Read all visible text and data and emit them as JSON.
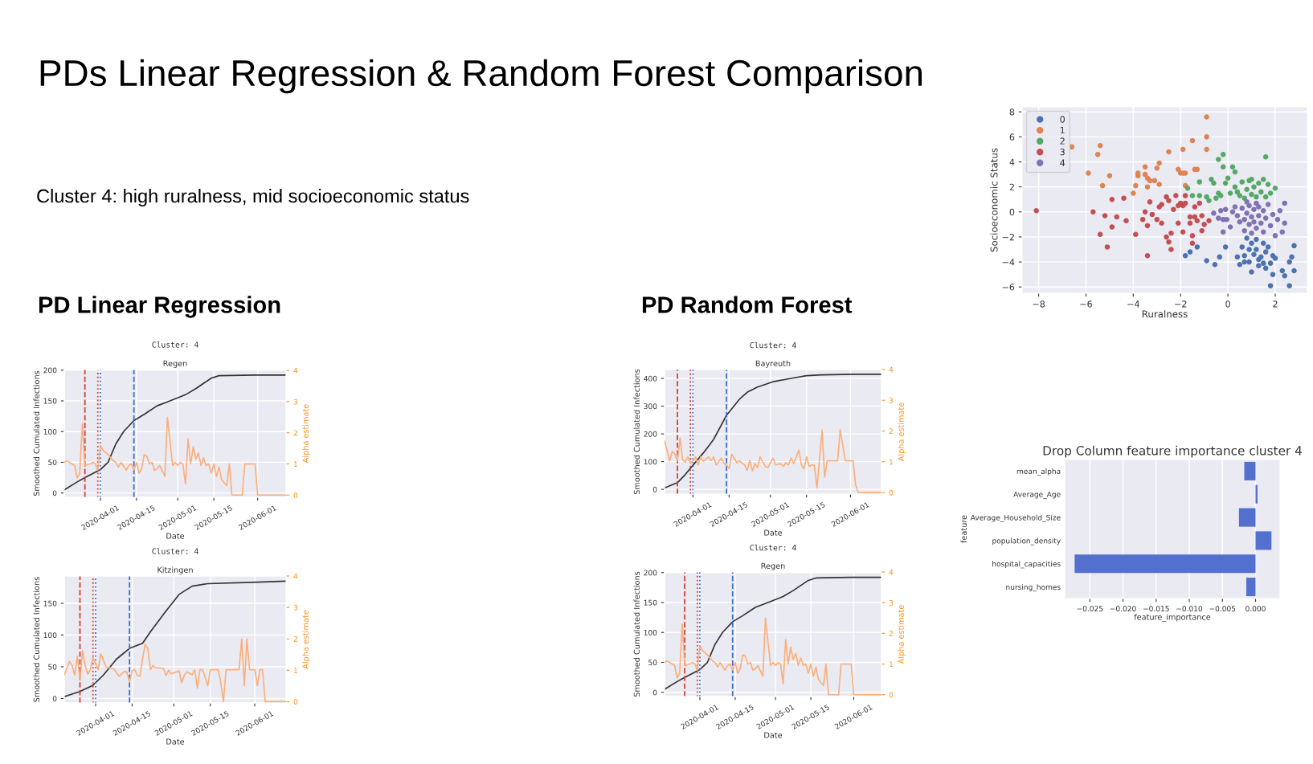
{
  "chart_data": [
    {
      "type": "other",
      "title": "PDs Linear Regression & Random Forest Comparison",
      "subtitle": "Cluster 4: high ruralness, mid socioeconomic status",
      "annotations": [
        "PD Linear Regression",
        "PD Random Forest"
      ]
    },
    {
      "type": "scatter",
      "xlabel": "Ruralness",
      "ylabel": "Socioeconomic Status",
      "xlim": [
        -8.7,
        3.36
      ],
      "ylim": [
        -6.5,
        8.4
      ],
      "xticks": [
        {
          "value": -8,
          "label": "−8"
        },
        {
          "value": -6,
          "label": "−6"
        },
        {
          "value": -4,
          "label": "−4"
        },
        {
          "value": -2,
          "label": "−2"
        },
        0,
        2
      ],
      "yticks": [
        {
          "value": -6,
          "label": "−6"
        },
        {
          "value": -4,
          "label": "−4"
        },
        {
          "value": -2,
          "label": "−2"
        },
        0,
        2,
        4,
        6,
        8
      ],
      "grid": true,
      "legend": "top left",
      "marker": "circle",
      "series": [
        {
          "name": "0",
          "color": "#4c72b0",
          "x": [
            -1.8,
            -1.6,
            -1.3,
            -0.9,
            -0.55,
            -0.35,
            -0.1,
            0.4,
            0.5,
            0.6,
            0.7,
            0.8,
            0.9,
            0.9,
            1.0,
            1.0,
            1.1,
            1.2,
            1.2,
            1.3,
            1.4,
            1.5,
            1.5,
            1.6,
            1.6,
            1.7,
            1.8,
            1.8,
            1.9,
            1.9,
            2.0,
            2.3,
            2.4,
            2.6,
            2.6,
            2.7,
            2.8,
            2.8,
            0.7,
            1.3
          ],
          "values": [
            -3.5,
            -3.2,
            -2.8,
            -3.9,
            -4.2,
            -3.6,
            -2.8,
            -3.6,
            -4.2,
            -2.8,
            -3.5,
            -2.1,
            -3.0,
            -4.0,
            -2.5,
            -4.8,
            -3.4,
            -2.2,
            -3.0,
            -4.3,
            -3.6,
            -2.5,
            -4.1,
            -3.2,
            -4.5,
            -2.8,
            -4.1,
            -5.9,
            -3.5,
            -5.0,
            -3.7,
            -4.7,
            -5.1,
            -4.0,
            -5.9,
            -3.6,
            -2.7,
            -4.7,
            -4.0,
            -3.8
          ]
        },
        {
          "name": "1",
          "color": "#dd8452",
          "x": [
            -6.6,
            -5.9,
            -5.5,
            -5.4,
            -5.3,
            -5.0,
            -4.0,
            -3.9,
            -3.8,
            -3.8,
            -3.5,
            -3.5,
            -3.4,
            -3.4,
            -3.3,
            -3.1,
            -3.0,
            -2.9,
            -2.9,
            -2.5,
            -2.1,
            -2.0,
            -1.9,
            -1.9,
            -1.8,
            -1.8,
            -1.5,
            -1.4,
            -1.3,
            -0.9,
            -0.9,
            -0.9
          ],
          "values": [
            5.2,
            3.1,
            4.6,
            5.3,
            2.1,
            2.9,
            1.5,
            2.1,
            3.1,
            2.9,
            3.6,
            3.0,
            2.7,
            2.0,
            2.5,
            2.5,
            3.5,
            2.2,
            3.9,
            4.8,
            3.4,
            3.1,
            5.0,
            3.1,
            3.1,
            2.1,
            5.7,
            3.4,
            3.4,
            7.6,
            6.0,
            5.0
          ]
        },
        {
          "name": "2",
          "color": "#55a868",
          "x": [
            -1.7,
            -1.5,
            -1.2,
            -1.2,
            -0.8,
            -0.7,
            -0.4,
            -0.2,
            -0.2,
            -0.4,
            -0.5,
            -0.3,
            -0.1,
            0.0,
            0.2,
            0.3,
            0.3,
            0.5,
            0.6,
            0.7,
            0.8,
            0.9,
            1.0,
            1.1,
            1.2,
            1.3,
            1.4,
            1.5,
            1.6,
            1.6,
            1.7,
            1.8,
            2.0,
            0.4,
            1.0,
            -0.9,
            -0.6,
            0.1
          ],
          "values": [
            1.9,
            1.3,
            2.4,
            1.3,
            0.9,
            2.6,
            4.2,
            4.6,
            3.6,
            1.5,
            1.1,
            1.3,
            2.3,
            2.7,
            3.6,
            3.2,
            2.0,
            1.3,
            2.4,
            1.1,
            1.8,
            2.5,
            1.4,
            2.0,
            1.2,
            2.3,
            1.6,
            2.6,
            1.2,
            4.4,
            2.2,
            1.5,
            1.9,
            1.6,
            2.6,
            1.2,
            2.3,
            1.5
          ]
        },
        {
          "name": "3",
          "color": "#c44e52",
          "x": [
            -8.1,
            -5.7,
            -5.4,
            -5.2,
            -5.1,
            -4.9,
            -4.9,
            -4.7,
            -4.4,
            -4.3,
            -3.9,
            -3.6,
            -3.5,
            -3.4,
            -3.4,
            -3.3,
            -3.2,
            -3.0,
            -2.9,
            -2.8,
            -2.8,
            -2.6,
            -2.6,
            -2.5,
            -2.5,
            -2.4,
            -2.4,
            -2.3,
            -2.2,
            -2.1,
            -2.1,
            -2.0,
            -1.9,
            -1.9,
            -1.8,
            -1.8,
            -1.6,
            -1.5,
            -1.5,
            -1.4,
            -1.4,
            -1.3,
            -1.2,
            -1.1,
            -1.1,
            -1.0,
            -0.8,
            -1.6
          ],
          "values": [
            0.1,
            0.0,
            -1.8,
            -0.3,
            -2.8,
            1.0,
            -1.2,
            -0.4,
            1.1,
            -0.7,
            -1.8,
            -0.6,
            0.0,
            -1.1,
            -3.5,
            0.8,
            -0.2,
            -0.6,
            0.4,
            -0.9,
            0.6,
            1.2,
            -2.0,
            -2.4,
            0.9,
            -1.7,
            -3.0,
            0.2,
            1.3,
            -0.9,
            0.5,
            0.7,
            0.5,
            -1.6,
            1.3,
            0.7,
            -0.9,
            -1.9,
            -2.5,
            -0.4,
            0.4,
            -0.7,
            0.7,
            -1.5,
            -0.3,
            -1.0,
            -0.7,
            -0.4
          ]
        },
        {
          "name": "4",
          "color": "#8172b3",
          "x": [
            -0.6,
            -0.4,
            -0.3,
            -0.2,
            -0.1,
            -0.2,
            -0.05,
            0.1,
            0.2,
            0.3,
            0.4,
            0.5,
            0.6,
            0.7,
            0.7,
            0.8,
            0.9,
            0.9,
            1.0,
            1.1,
            1.1,
            1.2,
            1.3,
            1.3,
            1.4,
            1.5,
            1.5,
            1.6,
            1.7,
            1.8,
            1.9,
            2.0,
            2.1,
            2.2,
            2.3,
            2.4,
            2.4,
            1.0,
            0.8,
            1.2
          ],
          "values": [
            -0.1,
            -0.5,
            0.1,
            -0.6,
            0.2,
            -1.6,
            -0.6,
            -1.2,
            0.0,
            0.4,
            -0.3,
            -0.8,
            0.3,
            -0.6,
            -1.5,
            -0.1,
            0.5,
            -1.0,
            -0.4,
            0.2,
            -0.8,
            -1.3,
            0.4,
            -0.3,
            -0.9,
            0.1,
            -1.6,
            -0.5,
            0.6,
            -1.1,
            -0.2,
            -1.9,
            -0.6,
            0.1,
            -1.6,
            0.7,
            -0.9,
            -1.7,
            0.8,
            0.7
          ]
        }
      ]
    },
    {
      "type": "line",
      "title": "Cluster: 4",
      "subtitle": "Regen",
      "xlabel": "Date",
      "ylabel": "Smoothed Cumulated Infections",
      "y2label": "Alpha estimate",
      "xlim": [
        "2020-03-18",
        "2020-06-12"
      ],
      "xticks": [
        "2020-04-01",
        "2020-04-15",
        "2020-05-01",
        "2020-05-15",
        "2020-06-01"
      ],
      "ylim": [
        -7,
        201
      ],
      "yticks": [
        0,
        50,
        100,
        150,
        200
      ],
      "y2lim": [
        -0.07,
        4.03
      ],
      "y2ticks": [
        0,
        1,
        2,
        3,
        4
      ],
      "grid": true,
      "ref_lines": [
        {
          "axis": "x",
          "value": "2020-03-26",
          "color": "#d9413a",
          "line_style": "dashed"
        },
        {
          "axis": "x",
          "value": "2020-03-31",
          "color": "#d9413a",
          "line_style": "dotted"
        },
        {
          "axis": "x",
          "value": "2020-04-01",
          "color": "#3d6fd1",
          "line_style": "dotted"
        },
        {
          "axis": "x",
          "value": "2020-04-14",
          "color": "#3d6fd1",
          "line_style": "dashed"
        }
      ],
      "series": [
        {
          "color": "#333333",
          "x": [
            "2020-03-18",
            "2020-03-23",
            "2020-03-26",
            "2020-04-01",
            "2020-04-04",
            "2020-04-07",
            "2020-04-10",
            "2020-04-14",
            "2020-04-18",
            "2020-04-23",
            "2020-04-28",
            "2020-05-04",
            "2020-05-08",
            "2020-05-14",
            "2020-05-17",
            "2020-05-31",
            "2020-06-12"
          ],
          "values": [
            5,
            18,
            25,
            38,
            50,
            80,
            100,
            118,
            128,
            142,
            150,
            160,
            170,
            187,
            191,
            192,
            192
          ]
        },
        {
          "color": "#fcaf7c",
          "axis": "y2",
          "x": [
            "2020-03-18",
            "2020-03-19",
            "2020-03-21",
            "2020-03-22",
            "2020-03-23",
            "2020-03-24",
            "2020-03-25",
            "2020-03-26",
            "2020-03-28",
            "2020-03-29",
            "2020-03-30",
            "2020-03-31",
            "2020-04-01",
            "2020-04-02",
            "2020-04-04",
            "2020-04-06",
            "2020-04-07",
            "2020-04-08",
            "2020-04-09",
            "2020-04-11",
            "2020-04-12",
            "2020-04-13",
            "2020-04-14",
            "2020-04-15",
            "2020-04-16",
            "2020-04-17",
            "2020-04-18",
            "2020-04-19",
            "2020-04-20",
            "2020-04-21",
            "2020-04-22",
            "2020-04-23",
            "2020-04-24",
            "2020-04-26",
            "2020-04-27",
            "2020-04-29",
            "2020-04-30",
            "2020-05-01",
            "2020-05-02",
            "2020-05-03",
            "2020-05-04",
            "2020-05-05",
            "2020-05-06",
            "2020-05-07",
            "2020-05-08",
            "2020-05-09",
            "2020-05-10",
            "2020-05-11",
            "2020-05-12",
            "2020-05-13",
            "2020-05-14",
            "2020-05-15",
            "2020-05-16",
            "2020-05-17",
            "2020-05-18",
            "2020-05-19",
            "2020-05-20",
            "2020-05-21",
            "2020-05-22",
            "2020-05-26",
            "2020-05-27",
            "2020-05-31",
            "2020-06-01",
            "2020-06-12"
          ],
          "values": [
            1.05,
            1.1,
            1.0,
            0.95,
            0.55,
            0.7,
            2.3,
            0.95,
            1.0,
            1.05,
            1.0,
            0.8,
            1.6,
            1.45,
            1.3,
            1.1,
            1.05,
            0.9,
            1.05,
            0.8,
            0.95,
            1.0,
            0.8,
            1.05,
            0.7,
            0.85,
            1.3,
            1.25,
            1.0,
            1.05,
            0.8,
            0.85,
            0.95,
            0.6,
            2.5,
            0.95,
            1.05,
            0.95,
            1.05,
            1.0,
            0.35,
            1.8,
            1.0,
            1.55,
            1.15,
            1.35,
            0.95,
            1.2,
            0.95,
            1.0,
            0.7,
            1.0,
            0.6,
            0.9,
            0.5,
            0.4,
            0.3,
            1.0,
            0.0,
            0.0,
            1.0,
            1.0,
            0.0,
            0.0
          ]
        }
      ]
    },
    {
      "type": "line",
      "title": "Cluster: 4",
      "subtitle": "Kitzingen",
      "xlabel": "Date",
      "ylabel": "Smoothed Cumulated Infections",
      "y2label": "Alpha estimate",
      "xlim": [
        "2020-03-20",
        "2020-06-13"
      ],
      "xticks": [
        "2020-04-01",
        "2020-04-15",
        "2020-05-01",
        "2020-05-15",
        "2020-06-01"
      ],
      "ylim": [
        -7,
        193
      ],
      "yticks": [
        0,
        50,
        100,
        150
      ],
      "y2lim": [
        -0.04,
        4.0
      ],
      "y2ticks": [
        0,
        1,
        2,
        3,
        4
      ],
      "grid": true,
      "ref_lines": [
        {
          "axis": "x",
          "value": "2020-03-26",
          "color": "#d9413a",
          "line_style": "dashed"
        },
        {
          "axis": "x",
          "value": "2020-03-31",
          "color": "#d9413a",
          "line_style": "dotted"
        },
        {
          "axis": "x",
          "value": "2020-04-01",
          "color": "#3d6fd1",
          "line_style": "dotted"
        },
        {
          "axis": "x",
          "value": "2020-04-14",
          "color": "#3d6fd1",
          "line_style": "dashed"
        }
      ],
      "series": [
        {
          "color": "#333333",
          "x": [
            "2020-03-20",
            "2020-03-26",
            "2020-03-31",
            "2020-04-04",
            "2020-04-09",
            "2020-04-14",
            "2020-04-19",
            "2020-04-22",
            "2020-04-28",
            "2020-05-03",
            "2020-05-08",
            "2020-05-14",
            "2020-05-31",
            "2020-06-13"
          ],
          "values": [
            3,
            11,
            21,
            37,
            62,
            79,
            87,
            105,
            138,
            164,
            177,
            181,
            183,
            185
          ]
        },
        {
          "color": "#fcaf7c",
          "axis": "y2",
          "x": [
            "2020-03-20",
            "2020-03-22",
            "2020-03-23",
            "2020-03-24",
            "2020-03-25",
            "2020-03-26",
            "2020-03-27",
            "2020-03-28",
            "2020-03-29",
            "2020-03-30",
            "2020-03-31",
            "2020-04-01",
            "2020-04-02",
            "2020-04-03",
            "2020-04-05",
            "2020-04-06",
            "2020-04-08",
            "2020-04-10",
            "2020-04-12",
            "2020-04-13",
            "2020-04-14",
            "2020-04-15",
            "2020-04-16",
            "2020-04-17",
            "2020-04-18",
            "2020-04-19",
            "2020-04-20",
            "2020-04-21",
            "2020-04-22",
            "2020-04-23",
            "2020-04-24",
            "2020-04-27",
            "2020-04-28",
            "2020-04-29",
            "2020-04-30",
            "2020-05-03",
            "2020-05-04",
            "2020-05-05",
            "2020-05-06",
            "2020-05-08",
            "2020-05-09",
            "2020-05-10",
            "2020-05-11",
            "2020-05-12",
            "2020-05-14",
            "2020-05-15",
            "2020-05-18",
            "2020-05-19",
            "2020-05-20",
            "2020-05-21",
            "2020-05-26",
            "2020-05-27",
            "2020-05-28",
            "2020-05-29",
            "2020-05-30",
            "2020-06-01",
            "2020-06-02",
            "2020-06-03",
            "2020-06-04",
            "2020-06-05",
            "2020-06-13"
          ],
          "values": [
            0.85,
            1.28,
            1.15,
            0.85,
            1.45,
            0.68,
            1.62,
            1.15,
            0.88,
            1.02,
            1.4,
            1.23,
            1.02,
            1.53,
            1.1,
            1.09,
            1.04,
            0.81,
            0.96,
            0.94,
            0.64,
            0.98,
            1.02,
            0.83,
            0.81,
            1.36,
            1.83,
            1.7,
            1.02,
            1.15,
            1.08,
            1.06,
            0.83,
            1.0,
            0.89,
            0.98,
            0.6,
            0.85,
            0.95,
            0.85,
            1.02,
            0.43,
            1.02,
            1.02,
            0.51,
            1.02,
            1.02,
            0.6,
            0.0,
            1.02,
            1.02,
            2.0,
            0.51,
            2.0,
            1.02,
            1.02,
            0.51,
            1.02,
            1.02,
            0.0,
            0.0
          ]
        }
      ]
    },
    {
      "type": "line",
      "title": "Cluster: 4",
      "subtitle": "Bayreuth",
      "xlabel": "Date",
      "ylabel": "Smoothed Cumulated Infections",
      "y2label": "Alpha estimate",
      "xlim": [
        "2020-03-21",
        "2020-06-13"
      ],
      "xticks": [
        "2020-04-01",
        "2020-04-15",
        "2020-05-01",
        "2020-05-15",
        "2020-06-01"
      ],
      "ylim": [
        -17,
        432
      ],
      "yticks": [
        0,
        100,
        200,
        300,
        400
      ],
      "y2lim": [
        -0.05,
        4.0
      ],
      "y2ticks": [
        0,
        1,
        2,
        3,
        4
      ],
      "grid": true,
      "ref_lines": [
        {
          "axis": "x",
          "value": "2020-03-26",
          "color": "#d9413a",
          "line_style": "dashed"
        },
        {
          "axis": "x",
          "value": "2020-03-31",
          "color": "#d9413a",
          "line_style": "dotted"
        },
        {
          "axis": "x",
          "value": "2020-04-01",
          "color": "#3d6fd1",
          "line_style": "dotted"
        },
        {
          "axis": "x",
          "value": "2020-04-14",
          "color": "#3d6fd1",
          "line_style": "dashed"
        }
      ],
      "series": [
        {
          "color": "#333333",
          "x": [
            "2020-03-21",
            "2020-03-26",
            "2020-03-29",
            "2020-04-01",
            "2020-04-05",
            "2020-04-09",
            "2020-04-14",
            "2020-04-19",
            "2020-04-22",
            "2020-04-26",
            "2020-05-02",
            "2020-05-09",
            "2020-05-15",
            "2020-05-21",
            "2020-06-02",
            "2020-06-13"
          ],
          "values": [
            5,
            24,
            53,
            87,
            131,
            180,
            267,
            325,
            350,
            369,
            388,
            400,
            410,
            413,
            415,
            415
          ]
        },
        {
          "color": "#fcaf7c",
          "axis": "y2",
          "x": [
            "2020-03-21",
            "2020-03-23",
            "2020-03-24",
            "2020-03-25",
            "2020-03-26",
            "2020-03-27",
            "2020-03-28",
            "2020-03-29",
            "2020-03-30",
            "2020-03-31",
            "2020-04-01",
            "2020-04-02",
            "2020-04-03",
            "2020-04-04",
            "2020-04-05",
            "2020-04-07",
            "2020-04-08",
            "2020-04-09",
            "2020-04-10",
            "2020-04-12",
            "2020-04-13",
            "2020-04-14",
            "2020-04-15",
            "2020-04-16",
            "2020-04-18",
            "2020-04-19",
            "2020-04-21",
            "2020-04-22",
            "2020-04-23",
            "2020-04-24",
            "2020-04-25",
            "2020-04-26",
            "2020-04-27",
            "2020-04-29",
            "2020-04-30",
            "2020-05-02",
            "2020-05-03",
            "2020-05-05",
            "2020-05-06",
            "2020-05-07",
            "2020-05-08",
            "2020-05-09",
            "2020-05-10",
            "2020-05-12",
            "2020-05-13",
            "2020-05-14",
            "2020-05-15",
            "2020-05-16",
            "2020-05-17",
            "2020-05-18",
            "2020-05-19",
            "2020-05-20",
            "2020-05-21",
            "2020-05-22",
            "2020-05-23",
            "2020-05-27",
            "2020-05-28",
            "2020-05-30",
            "2020-06-02",
            "2020-06-03",
            "2020-06-04",
            "2020-06-13"
          ],
          "values": [
            1.69,
            1.03,
            1.34,
            1.25,
            1.03,
            1.78,
            1.07,
            0.98,
            1.16,
            0.97,
            1.03,
            1.16,
            0.9,
            1.16,
            1.01,
            1.16,
            1.03,
            1.16,
            0.9,
            1.12,
            0.94,
            0.9,
            0.77,
            1.25,
            0.97,
            1.03,
            0.9,
            0.72,
            1.05,
            0.7,
            0.94,
            0.81,
            1.16,
            0.85,
            0.81,
            1.12,
            0.9,
            0.94,
            0.85,
            0.97,
            0.9,
            1.12,
            0.94,
            1.38,
            0.9,
            0.77,
            1.16,
            0.85,
            0.9,
            0.88,
            0.15,
            1.07,
            2.04,
            0.5,
            1.03,
            1.03,
            2.04,
            1.03,
            1.03,
            0.24,
            0.0,
            0.0
          ]
        }
      ]
    },
    {
      "type": "line",
      "title": "Cluster: 4",
      "subtitle": "Regen",
      "xlabel": "Date",
      "ylabel": "Smoothed Cumulated Infections",
      "y2label": "Alpha estimate",
      "xlim": [
        "2020-03-18",
        "2020-06-12"
      ],
      "xticks": [
        "2020-04-01",
        "2020-04-15",
        "2020-05-01",
        "2020-05-15",
        "2020-06-01"
      ],
      "ylim": [
        -7,
        201
      ],
      "yticks": [
        0,
        50,
        100,
        150,
        200
      ],
      "y2lim": [
        -0.06,
        4.0
      ],
      "y2ticks": [
        0,
        1,
        2,
        3,
        4
      ],
      "grid": true,
      "ref_lines": [
        {
          "axis": "x",
          "value": "2020-03-26",
          "color": "#d9413a",
          "line_style": "dashed"
        },
        {
          "axis": "x",
          "value": "2020-03-31",
          "color": "#d9413a",
          "line_style": "dotted"
        },
        {
          "axis": "x",
          "value": "2020-04-01",
          "color": "#3d6fd1",
          "line_style": "dotted"
        },
        {
          "axis": "x",
          "value": "2020-04-14",
          "color": "#3d6fd1",
          "line_style": "dashed"
        }
      ],
      "series": [
        {
          "color": "#333333",
          "x": [
            "2020-03-18",
            "2020-03-23",
            "2020-03-26",
            "2020-04-01",
            "2020-04-04",
            "2020-04-07",
            "2020-04-10",
            "2020-04-14",
            "2020-04-18",
            "2020-04-23",
            "2020-04-28",
            "2020-05-04",
            "2020-05-08",
            "2020-05-14",
            "2020-05-17",
            "2020-05-31",
            "2020-06-12"
          ],
          "values": [
            5,
            18,
            25,
            38,
            50,
            80,
            100,
            118,
            128,
            142,
            150,
            160,
            170,
            187,
            191,
            192,
            192
          ]
        },
        {
          "color": "#fcaf7c",
          "axis": "y2",
          "x": [
            "2020-03-18",
            "2020-03-19",
            "2020-03-21",
            "2020-03-22",
            "2020-03-23",
            "2020-03-24",
            "2020-03-25",
            "2020-03-26",
            "2020-03-28",
            "2020-03-29",
            "2020-03-30",
            "2020-03-31",
            "2020-04-01",
            "2020-04-02",
            "2020-04-04",
            "2020-04-06",
            "2020-04-07",
            "2020-04-08",
            "2020-04-09",
            "2020-04-11",
            "2020-04-12",
            "2020-04-13",
            "2020-04-14",
            "2020-04-15",
            "2020-04-16",
            "2020-04-17",
            "2020-04-18",
            "2020-04-19",
            "2020-04-20",
            "2020-04-21",
            "2020-04-22",
            "2020-04-23",
            "2020-04-24",
            "2020-04-26",
            "2020-04-27",
            "2020-04-29",
            "2020-04-30",
            "2020-05-01",
            "2020-05-02",
            "2020-05-03",
            "2020-05-04",
            "2020-05-05",
            "2020-05-06",
            "2020-05-07",
            "2020-05-08",
            "2020-05-09",
            "2020-05-10",
            "2020-05-11",
            "2020-05-12",
            "2020-05-13",
            "2020-05-14",
            "2020-05-15",
            "2020-05-16",
            "2020-05-17",
            "2020-05-18",
            "2020-05-19",
            "2020-05-20",
            "2020-05-21",
            "2020-05-22",
            "2020-05-26",
            "2020-05-27",
            "2020-05-31",
            "2020-06-01",
            "2020-06-12"
          ],
          "values": [
            1.05,
            1.1,
            1.0,
            0.95,
            0.55,
            0.7,
            2.3,
            0.95,
            1.0,
            1.05,
            1.0,
            0.8,
            1.6,
            1.45,
            1.3,
            1.1,
            1.05,
            0.9,
            1.05,
            0.8,
            0.95,
            1.0,
            0.8,
            1.05,
            0.7,
            0.85,
            1.3,
            1.25,
            1.0,
            1.05,
            0.8,
            0.85,
            0.95,
            0.6,
            2.5,
            0.95,
            1.05,
            0.95,
            1.05,
            1.0,
            0.35,
            1.8,
            1.0,
            1.55,
            1.15,
            1.35,
            0.95,
            1.2,
            0.95,
            1.0,
            0.7,
            1.0,
            0.6,
            0.9,
            0.5,
            0.4,
            0.3,
            1.0,
            0.0,
            0.0,
            1.0,
            1.0,
            0.0,
            0.0
          ]
        }
      ]
    },
    {
      "type": "bar",
      "orientation": "horizontal",
      "title": "Drop Column feature importance cluster 4",
      "xlabel": "feature_importance",
      "ylabel": "feature",
      "categories": [
        "mean_alpha",
        "Average_Age",
        "Average_Household_Size",
        "population_density",
        "hospital_capacities",
        "nursing_homes"
      ],
      "values": [
        -0.0017,
        0.0003,
        -0.0025,
        0.0024,
        -0.0273,
        -0.0014
      ],
      "color": "#5470cf",
      "xlim": [
        -0.0288,
        0.0037
      ],
      "xticks": [
        {
          "value": -0.025,
          "label": "−0.025"
        },
        {
          "value": -0.02,
          "label": "−0.020"
        },
        {
          "value": -0.015,
          "label": "−0.015"
        },
        {
          "value": -0.01,
          "label": "−0.010"
        },
        {
          "value": -0.005,
          "label": "−0.005"
        },
        {
          "value": 0,
          "label": "0.000"
        }
      ],
      "grid": "x"
    }
  ]
}
